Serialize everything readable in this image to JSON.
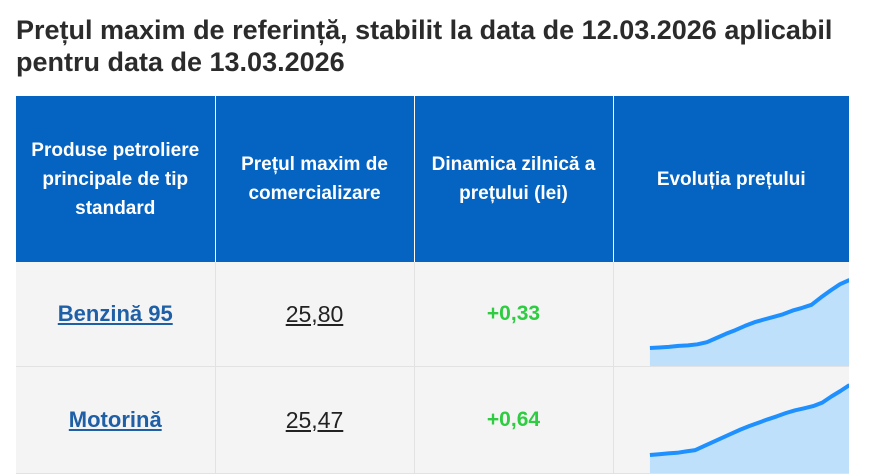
{
  "title": "Prețul maxim de referință, stabilit la data de 12.03.2026 aplicabil pentru data de 13.03.2026",
  "table": {
    "headers": [
      "Produse petroliere principale de tip standard",
      "Prețul maxim de comercializare",
      "Dinamica zilnică a prețului (lei)",
      "Evoluția prețului"
    ],
    "rows": [
      {
        "product": "Benzină 95",
        "price": "25,80",
        "change": "+0,33",
        "trend": [
          24.51,
          24.52,
          24.53,
          24.55,
          24.56,
          24.58,
          24.62,
          24.7,
          24.78,
          24.85,
          24.93,
          25.0,
          25.05,
          25.1,
          25.15,
          25.22,
          25.27,
          25.33,
          25.47,
          25.6,
          25.72,
          25.8
        ]
      },
      {
        "product": "Motorină",
        "price": "25,47",
        "change": "+0,64",
        "trend": [
          22.92,
          22.95,
          22.98,
          23.0,
          23.05,
          23.1,
          23.25,
          23.4,
          23.55,
          23.7,
          23.85,
          23.98,
          24.1,
          24.22,
          24.33,
          24.45,
          24.55,
          24.62,
          24.7,
          24.83,
          25.05,
          25.25,
          25.47
        ]
      }
    ]
  },
  "colors": {
    "header_bg": "#0563c1",
    "link": "#1f5fa6",
    "positive": "#2ecc40",
    "spark_line": "#1e90ff",
    "spark_fill": "#bfe0fb"
  }
}
